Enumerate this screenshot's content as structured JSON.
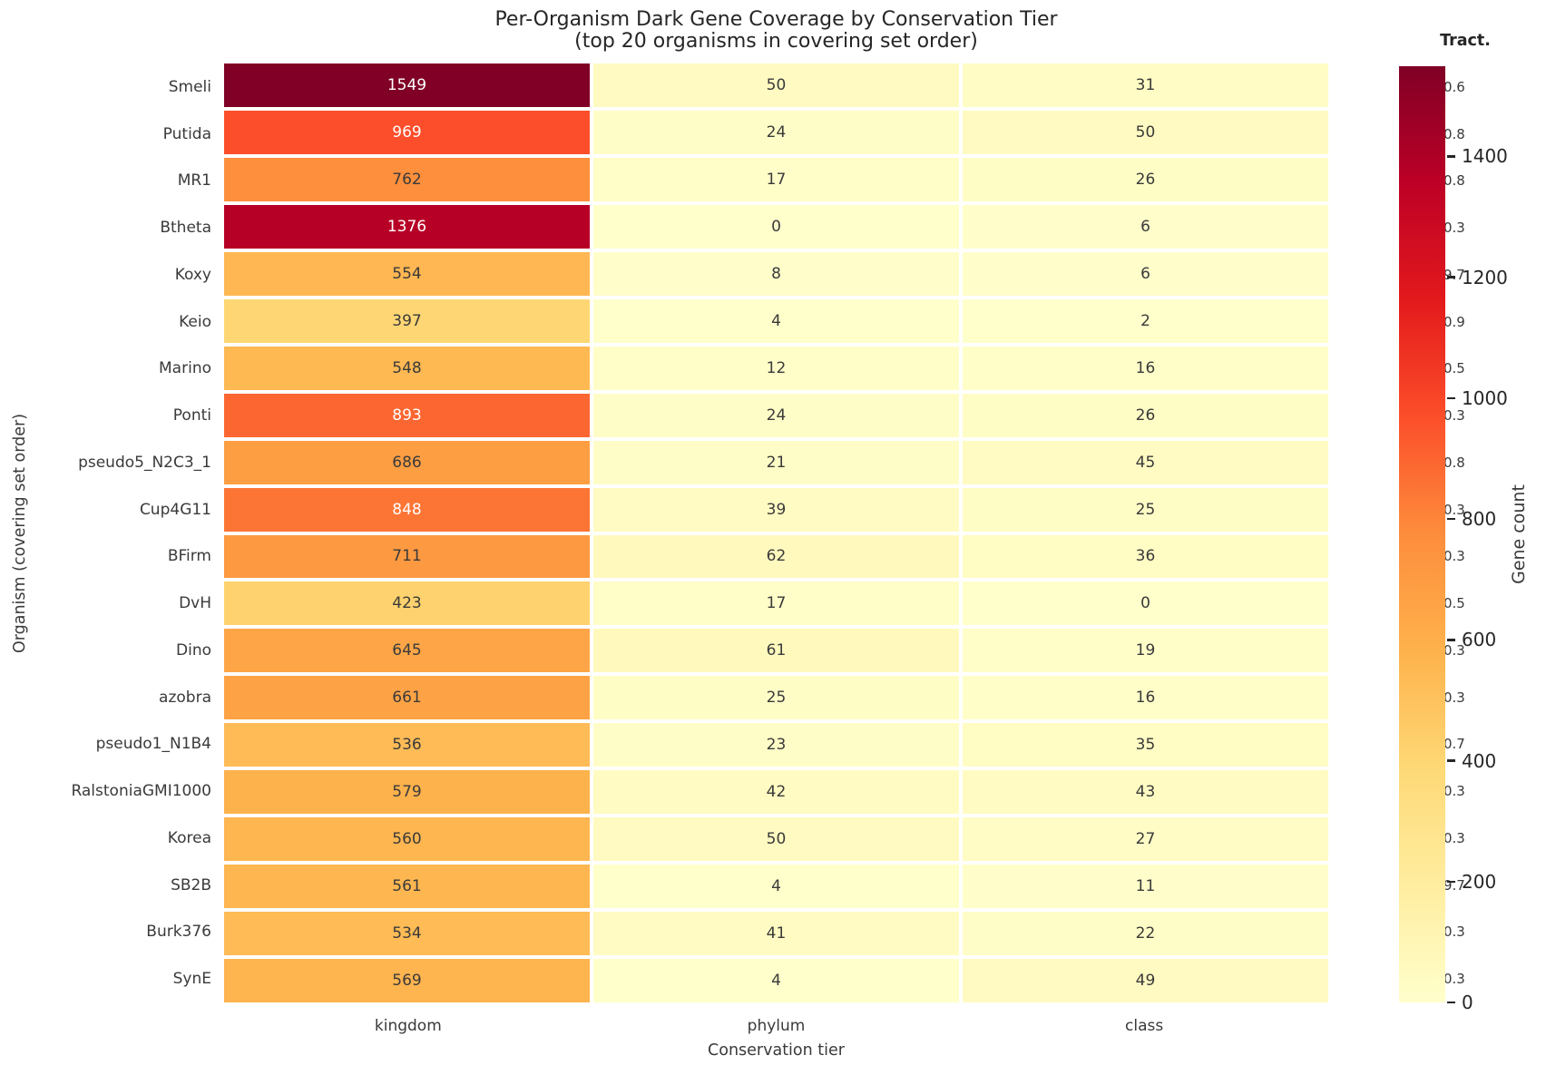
{
  "title": {
    "line1": "Per-Organism Dark Gene Coverage by Conservation Tier",
    "line2": "(top 20 organisms in covering set order)"
  },
  "axes": {
    "x_label": "Conservation tier",
    "y_label": "Organism (covering set order)"
  },
  "colorbar": {
    "title": "Tract.",
    "label": "Gene count",
    "ticks": [
      0,
      200,
      400,
      600,
      800,
      1000,
      1200,
      1400
    ],
    "vmin": 0,
    "vmax": 1549,
    "colormap_stops": [
      [
        0.0,
        "#ffffcc"
      ],
      [
        0.125,
        "#ffeda0"
      ],
      [
        0.25,
        "#fed976"
      ],
      [
        0.375,
        "#feb24c"
      ],
      [
        0.5,
        "#fd8d3c"
      ],
      [
        0.625,
        "#fc4e2a"
      ],
      [
        0.75,
        "#e31a1c"
      ],
      [
        0.875,
        "#bd0026"
      ],
      [
        1.0,
        "#800026"
      ]
    ]
  },
  "tract_overlay": {
    "values": [
      "0.6",
      "0.8",
      "0.8",
      "0.3",
      "9.7",
      "0.9",
      "0.5",
      "0.3",
      "0.8",
      "0.3",
      "0.3",
      "0.5",
      "0.3",
      "0.3",
      "0.7",
      "0.3",
      "0.3",
      "9.7",
      "0.3",
      "0.3"
    ]
  },
  "chart_data": {
    "type": "heatmap",
    "title": "Per-Organism Dark Gene Coverage by Conservation Tier (top 20 organisms in covering set order)",
    "xlabel": "Conservation tier",
    "ylabel": "Organism (covering set order)",
    "columns": [
      "kingdom",
      "phylum",
      "class"
    ],
    "rows": [
      "Smeli",
      "Putida",
      "MR1",
      "Btheta",
      "Koxy",
      "Keio",
      "Marino",
      "Ponti",
      "pseudo5_N2C3_1",
      "Cup4G11",
      "BFirm",
      "DvH",
      "Dino",
      "azobra",
      "pseudo1_N1B4",
      "RalstoniaGMI1000",
      "Korea",
      "SB2B",
      "Burk376",
      "SynE"
    ],
    "values": [
      [
        1549,
        50,
        31
      ],
      [
        969,
        24,
        50
      ],
      [
        762,
        17,
        26
      ],
      [
        1376,
        0,
        6
      ],
      [
        554,
        8,
        6
      ],
      [
        397,
        4,
        2
      ],
      [
        548,
        12,
        16
      ],
      [
        893,
        24,
        26
      ],
      [
        686,
        21,
        45
      ],
      [
        848,
        39,
        25
      ],
      [
        711,
        62,
        36
      ],
      [
        423,
        17,
        0
      ],
      [
        645,
        61,
        19
      ],
      [
        661,
        25,
        16
      ],
      [
        536,
        23,
        35
      ],
      [
        579,
        42,
        43
      ],
      [
        560,
        50,
        27
      ],
      [
        561,
        4,
        11
      ],
      [
        534,
        41,
        22
      ],
      [
        569,
        4,
        49
      ]
    ],
    "white_text_min": 800,
    "legend_position": "right-colorbar",
    "grid": false
  }
}
